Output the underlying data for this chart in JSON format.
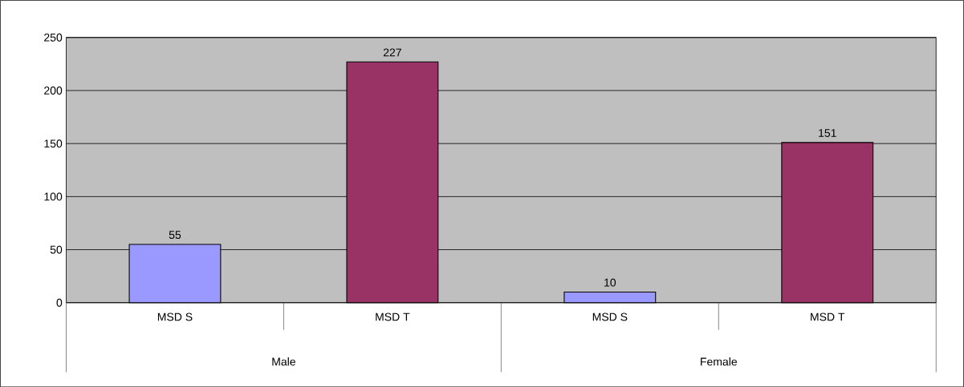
{
  "chart_data": {
    "type": "bar",
    "categories": [
      "MSD S",
      "MSD T",
      "MSD S",
      "MSD T"
    ],
    "values": [
      55,
      227,
      10,
      151
    ],
    "colors": [
      "#9999ff",
      "#993366",
      "#9999ff",
      "#993366"
    ],
    "ylim": [
      0,
      250
    ],
    "yticks": [
      0,
      50,
      100,
      150,
      200,
      250
    ],
    "grid": "y",
    "data_labels": true,
    "annotations": [
      "Male",
      "Female"
    ]
  }
}
